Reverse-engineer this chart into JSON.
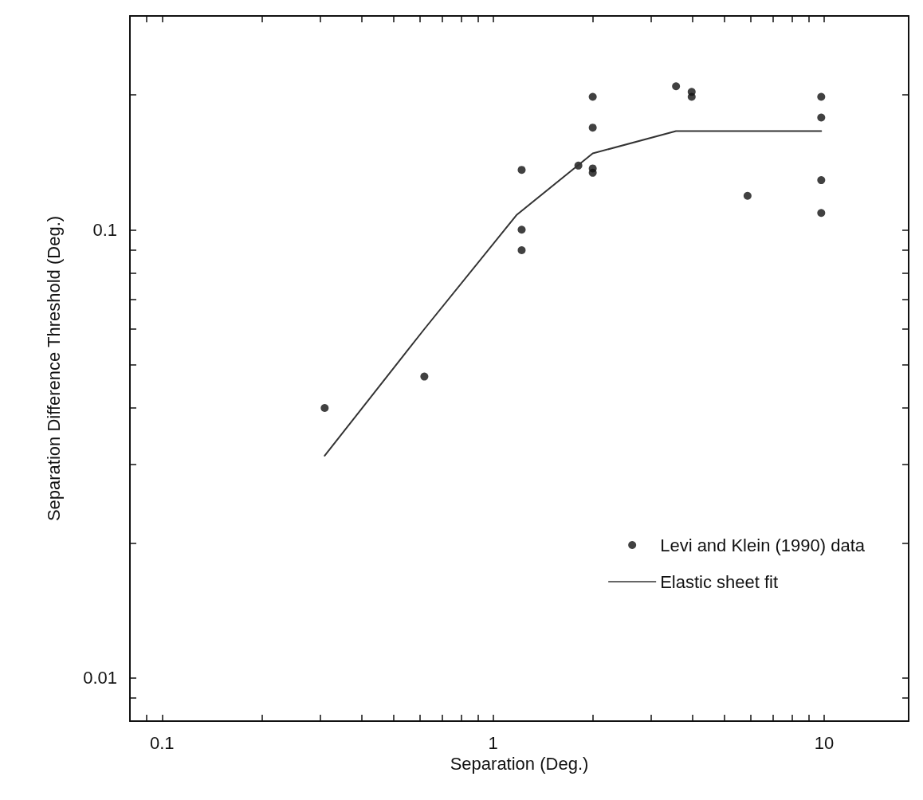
{
  "chart_data": {
    "type": "scatter",
    "xlabel": "Separation (Deg.)",
    "ylabel": "Separation Difference Threshold (Deg.)",
    "log": "xy",
    "grid": false,
    "legend": "bottom right",
    "xlim": [
      0.08,
      18
    ],
    "ylim": [
      0.008,
      0.3
    ],
    "xticks": [
      {
        "value": 0.09,
        "label": null
      },
      0.1,
      {
        "value": 0.2,
        "label": null
      },
      {
        "value": 0.3,
        "label": null
      },
      {
        "value": 0.4,
        "label": null
      },
      {
        "value": 0.5,
        "label": null
      },
      {
        "value": 0.6,
        "label": null
      },
      {
        "value": 0.7,
        "label": null
      },
      {
        "value": 0.8,
        "label": null
      },
      {
        "value": 0.9,
        "label": null
      },
      1,
      {
        "value": 2,
        "label": null
      },
      {
        "value": 3,
        "label": null
      },
      {
        "value": 4,
        "label": null
      },
      {
        "value": 5,
        "label": null
      },
      {
        "value": 6,
        "label": null
      },
      {
        "value": 7,
        "label": null
      },
      {
        "value": 8,
        "label": null
      },
      {
        "value": 9,
        "label": null
      },
      10
    ],
    "yticks": [
      {
        "value": 0.009,
        "label": null
      },
      0.01,
      {
        "value": 0.02,
        "label": null
      },
      {
        "value": 0.03,
        "label": null
      },
      {
        "value": 0.04,
        "label": null
      },
      {
        "value": 0.05,
        "label": null
      },
      {
        "value": 0.06,
        "label": null
      },
      {
        "value": 0.07,
        "label": null
      },
      {
        "value": 0.08,
        "label": null
      },
      {
        "value": 0.09,
        "label": null
      },
      0.1,
      {
        "value": 0.2,
        "label": null
      }
    ],
    "series": [
      {
        "name": "Levi and Klein (1990) data",
        "marker": "circle",
        "color": "#111111",
        "x": [
          0.31,
          0.62,
          1.22,
          1.22,
          1.22,
          1.81,
          2,
          2,
          2,
          2,
          3.57,
          3.98,
          3.98,
          5.87,
          9.8,
          9.8,
          9.8,
          9.8
        ],
        "values": [
          0.04,
          0.047,
          0.136,
          0.1,
          0.09,
          0.139,
          0.198,
          0.169,
          0.137,
          0.134,
          0.209,
          0.203,
          0.198,
          0.119,
          0.198,
          0.178,
          0.129,
          0.109
        ]
      },
      {
        "name": "Elastic sheet fit",
        "type": "line",
        "marker": "none",
        "color": "#333333",
        "line_style": "solid",
        "x": [
          0.31,
          0.62,
          1.18,
          2,
          3.57,
          9.8
        ],
        "values": [
          0.0313,
          0.06,
          0.108,
          0.148,
          0.166,
          0.166
        ]
      }
    ]
  }
}
